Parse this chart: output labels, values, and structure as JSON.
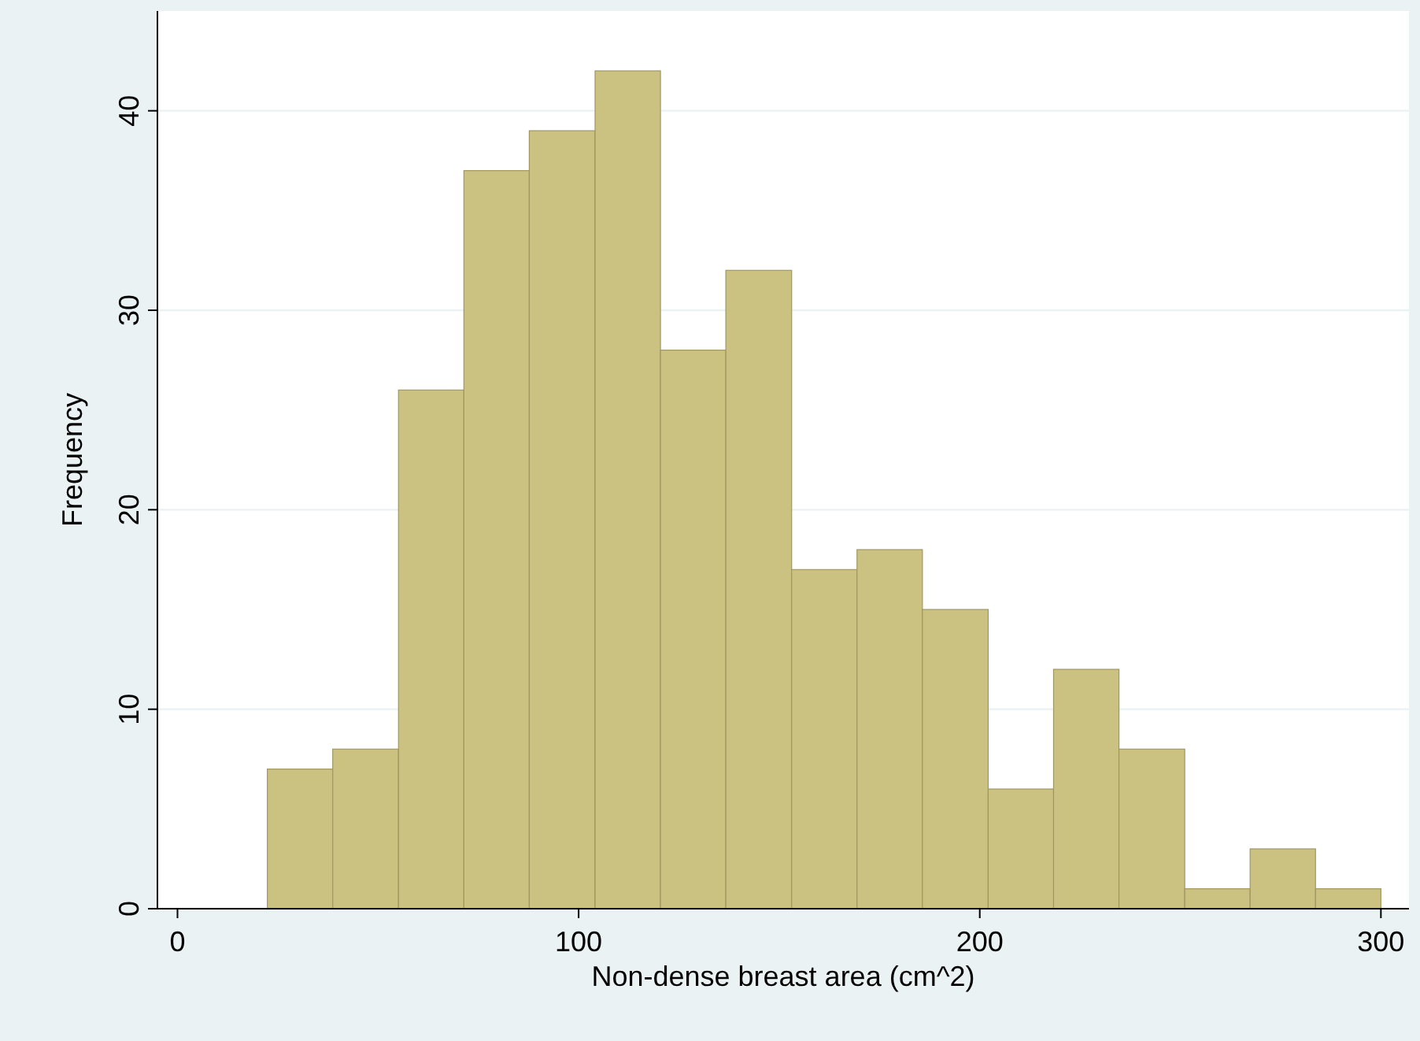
{
  "chart_data": {
    "type": "histogram",
    "xlabel": "Non-dense breast area (cm^2)",
    "ylabel": "Frequency",
    "bins": [
      22.4,
      38.7,
      55.1,
      71.4,
      87.7,
      104.1,
      120.4,
      136.7,
      153.1,
      169.4,
      185.7,
      202.1,
      218.4,
      234.7,
      251.1,
      267.4,
      283.7,
      300
    ],
    "values": [
      7,
      8,
      26,
      37,
      39,
      42,
      28,
      32,
      17,
      18,
      15,
      6,
      12,
      8,
      1,
      3,
      1
    ],
    "color": "#cbc282",
    "xlim": [
      -5,
      307
    ],
    "xticks": [
      0,
      100,
      200,
      300
    ],
    "ylim": [
      0,
      45
    ],
    "yticks": [
      0,
      10,
      20,
      30,
      40
    ],
    "grid": "y"
  }
}
